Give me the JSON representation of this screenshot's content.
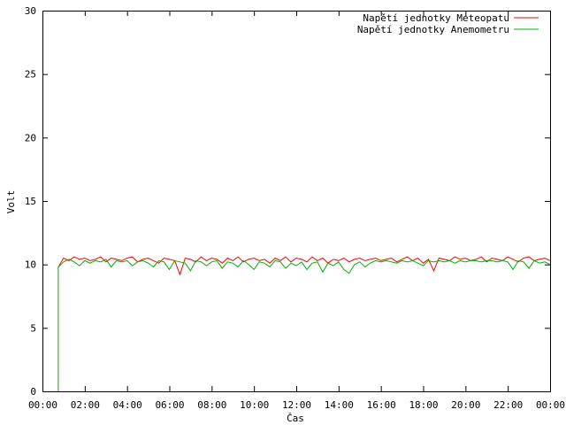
{
  "chart_data": {
    "type": "line",
    "title": "",
    "xlabel": "Čas",
    "ylabel": "Volt",
    "xlim": [
      "00:00",
      "24:00"
    ],
    "ylim": [
      0,
      30
    ],
    "x_ticks": [
      "00:00",
      "02:00",
      "04:00",
      "06:00",
      "08:00",
      "10:00",
      "12:00",
      "14:00",
      "16:00",
      "18:00",
      "20:00",
      "22:00",
      "00:00"
    ],
    "y_ticks": [
      "0",
      "5",
      "10",
      "15",
      "20",
      "25",
      "30"
    ],
    "grid": false,
    "legend_position": "top-right",
    "x": [
      "00:45",
      "01:00",
      "01:15",
      "01:30",
      "01:45",
      "02:00",
      "02:15",
      "02:30",
      "02:45",
      "03:00",
      "03:15",
      "03:30",
      "03:45",
      "04:00",
      "04:15",
      "04:30",
      "04:45",
      "05:00",
      "05:15",
      "05:30",
      "05:45",
      "06:00",
      "06:15",
      "06:30",
      "06:45",
      "07:00",
      "07:15",
      "07:30",
      "07:45",
      "08:00",
      "08:15",
      "08:30",
      "08:45",
      "09:00",
      "09:15",
      "09:30",
      "09:45",
      "10:00",
      "10:15",
      "10:30",
      "10:45",
      "11:00",
      "11:15",
      "11:30",
      "11:45",
      "12:00",
      "12:15",
      "12:30",
      "12:45",
      "13:00",
      "13:15",
      "13:30",
      "13:45",
      "14:00",
      "14:15",
      "14:30",
      "14:45",
      "15:00",
      "15:15",
      "15:30",
      "15:45",
      "16:00",
      "16:15",
      "16:30",
      "16:45",
      "17:00",
      "17:15",
      "17:30",
      "17:45",
      "18:00",
      "18:15",
      "18:30",
      "18:45",
      "19:00",
      "19:15",
      "19:30",
      "19:45",
      "20:00",
      "20:15",
      "20:30",
      "20:45",
      "21:00",
      "21:15",
      "21:30",
      "21:45",
      "22:00",
      "22:15",
      "22:30",
      "22:45",
      "23:00",
      "23:15",
      "23:30",
      "23:45",
      "24:00"
    ],
    "series": [
      {
        "name": "Napětí jednotky Meteopatu",
        "color": "#ff0000",
        "values": [
          9.8,
          10.5,
          10.3,
          10.6,
          10.4,
          10.5,
          10.3,
          10.4,
          10.6,
          10.2,
          10.5,
          10.4,
          10.3,
          10.5,
          10.6,
          10.2,
          10.4,
          10.5,
          10.3,
          10.1,
          10.5,
          10.4,
          10.3,
          9.2,
          10.5,
          10.4,
          10.2,
          10.6,
          10.3,
          10.5,
          10.4,
          10.1,
          10.5,
          10.3,
          10.6,
          10.2,
          10.4,
          10.5,
          10.3,
          10.4,
          10.1,
          10.5,
          10.3,
          10.6,
          10.2,
          10.5,
          10.4,
          10.2,
          10.6,
          10.3,
          10.5,
          10.1,
          10.4,
          10.3,
          10.5,
          10.2,
          10.4,
          10.5,
          10.3,
          10.4,
          10.5,
          10.3,
          10.4,
          10.5,
          10.2,
          10.4,
          10.6,
          10.3,
          10.5,
          10.1,
          10.4,
          9.5,
          10.5,
          10.4,
          10.3,
          10.6,
          10.4,
          10.5,
          10.3,
          10.4,
          10.6,
          10.2,
          10.5,
          10.4,
          10.3,
          10.6,
          10.4,
          10.2,
          10.5,
          10.6,
          10.3,
          10.4,
          10.5,
          10.3
        ]
      },
      {
        "name": "Napětí jednotky Anemometru",
        "color": "#00b000",
        "values": [
          9.8,
          10.2,
          10.4,
          10.2,
          9.9,
          10.3,
          10.1,
          10.3,
          10.2,
          10.4,
          9.8,
          10.3,
          10.2,
          10.3,
          9.9,
          10.2,
          10.3,
          10.1,
          9.8,
          10.3,
          10.2,
          9.6,
          10.3,
          10.2,
          10.1,
          9.5,
          10.3,
          10.2,
          9.9,
          10.2,
          10.3,
          9.7,
          10.2,
          10.1,
          9.8,
          10.3,
          10.0,
          9.6,
          10.2,
          10.1,
          9.8,
          10.3,
          10.2,
          9.7,
          10.1,
          9.9,
          10.2,
          9.6,
          10.1,
          10.2,
          9.4,
          10.1,
          9.9,
          10.2,
          9.6,
          9.3,
          10.0,
          10.2,
          9.8,
          10.1,
          10.3,
          10.2,
          10.3,
          10.2,
          10.1,
          10.3,
          10.2,
          10.3,
          10.1,
          9.9,
          10.3,
          10.2,
          10.3,
          10.2,
          10.3,
          10.1,
          10.3,
          10.2,
          10.3,
          10.3,
          10.2,
          10.3,
          10.3,
          10.2,
          10.3,
          10.2,
          9.6,
          10.3,
          10.2,
          9.7,
          10.3,
          10.1,
          10.2,
          10.0
        ]
      }
    ]
  }
}
